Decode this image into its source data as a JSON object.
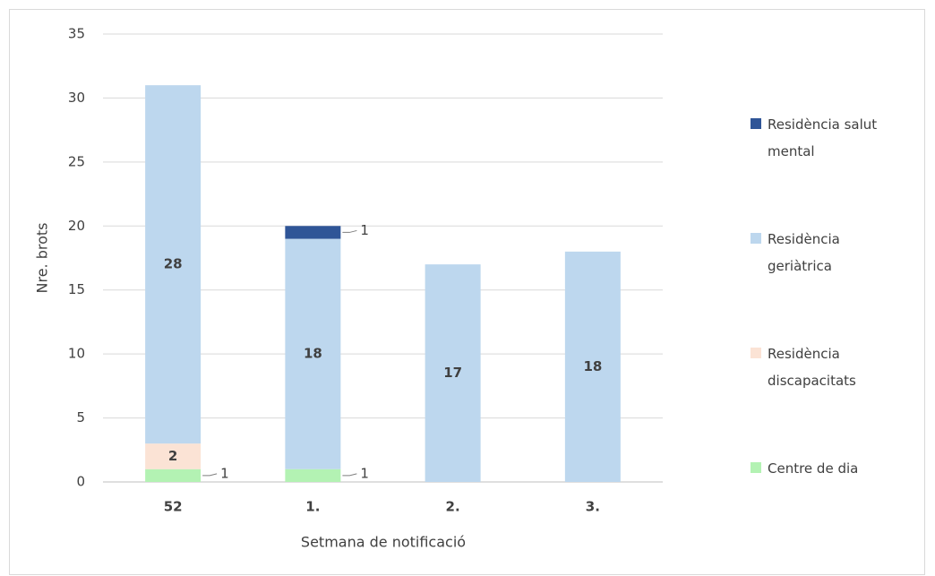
{
  "chart_data": {
    "type": "stacked_bar",
    "x_label": "Setmana de notificació",
    "y_label": "Nre. brots",
    "categories": [
      "52",
      "1.",
      "2.",
      "3."
    ],
    "series": [
      {
        "name": "Centre de dia",
        "color": "#b3f2b3",
        "values": [
          1,
          1,
          null,
          null
        ]
      },
      {
        "name": "Residència discapacitats",
        "color": "#fbe3d5",
        "values": [
          2,
          null,
          null,
          null
        ]
      },
      {
        "name": "Residència geriàtrica",
        "color": "#bdd7ee",
        "values": [
          28,
          18,
          17,
          18
        ]
      },
      {
        "name": "Residència salut mental",
        "color": "#2f5597",
        "values": [
          null,
          1,
          null,
          null
        ]
      }
    ],
    "ylim": [
      0,
      35
    ],
    "yticks": [
      0,
      5,
      10,
      15,
      20,
      25,
      30,
      35
    ],
    "grid": true,
    "legend": "right"
  }
}
